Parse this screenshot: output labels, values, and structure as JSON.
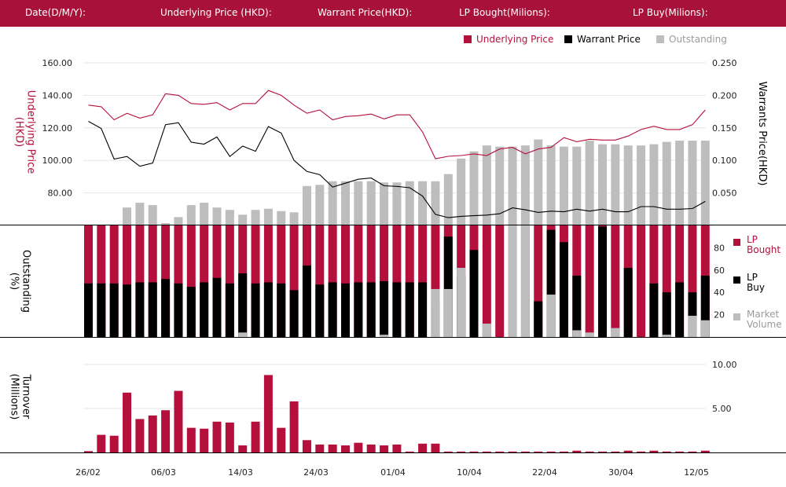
{
  "header": {
    "date_label": "Date(D/M/Y):",
    "underlying_label": "Underlying Price (HKD):",
    "warrant_label": "Warrant  Price(HKD):",
    "lp_bought_label": "LP Bought(Milions):",
    "lp_buy_label": "LP Buy(Milions):"
  },
  "colors": {
    "header_bg": "#a8123a",
    "underlying": "#b5103c",
    "warrant": "#000000",
    "outstanding": "#bdbdbd",
    "lp_bought": "#b5103c",
    "lp_buy": "#000000",
    "market_volume": "#bdbdbd",
    "turnover": "#b5103c",
    "grid": "#e6e6e6"
  },
  "legend": {
    "underlying": "Underlying Price",
    "warrant": "Warrant  Price",
    "outstanding": "Outstanding"
  },
  "panel2_legend": {
    "lp_bought": [
      "LP",
      "Bought"
    ],
    "lp_buy": [
      "LP",
      "Buy"
    ],
    "market_volume": [
      "Market",
      "Volume"
    ]
  },
  "axes": {
    "price_left_title": [
      "Underlying Price",
      "(HKD)"
    ],
    "price_right_title": "Warrants  Price(HKD)",
    "outstanding_title": [
      "Outstanding",
      "(%)"
    ],
    "turnover_title": [
      "Turnover",
      "(Millions)"
    ],
    "price_left_ticks": [
      "160.00",
      "140.00",
      "120.00",
      "100.00",
      "80.00"
    ],
    "price_right_ticks": [
      "0.250",
      "0.200",
      "0.150",
      "0.100",
      "0.050"
    ],
    "outstanding_ticks": [
      "80",
      "60",
      "40",
      "20"
    ],
    "turnover_ticks": [
      "10.00",
      "5.00"
    ],
    "x_ticks": [
      "26/02",
      "06/03",
      "14/03",
      "24/03",
      "01/04",
      "10/04",
      "22/04",
      "30/04",
      "12/05"
    ]
  },
  "chart_data": [
    {
      "type": "line",
      "x_tick_labels": [
        "26/02",
        "06/03",
        "14/03",
        "24/03",
        "01/04",
        "10/04",
        "22/04",
        "30/04",
        "12/05"
      ],
      "ylim_left": [
        60,
        160
      ],
      "ylim_right": [
        0,
        0.25
      ],
      "grid": true,
      "legend_position": "top-right",
      "series": [
        {
          "name": "Underlying Price",
          "axis": "left",
          "values": [
            134,
            133,
            125,
            129,
            126,
            128,
            141,
            140,
            135,
            134.5,
            135.5,
            131,
            135,
            135,
            143,
            140,
            134,
            129,
            131,
            125,
            127,
            127.5,
            128.5,
            125.5,
            128,
            128,
            117.5,
            101,
            102.5,
            103,
            104,
            103,
            107,
            108,
            104,
            107,
            108,
            114,
            111.5,
            113,
            112.5,
            112.5,
            115,
            119,
            121,
            119,
            119,
            122,
            131
          ]
        },
        {
          "name": "Warrant  Price",
          "axis": "right",
          "values": [
            0.16,
            0.149,
            0.102,
            0.106,
            0.091,
            0.096,
            0.155,
            0.158,
            0.128,
            0.125,
            0.136,
            0.106,
            0.122,
            0.114,
            0.152,
            0.142,
            0.1,
            0.083,
            0.078,
            0.059,
            0.065,
            0.071,
            0.073,
            0.061,
            0.06,
            0.058,
            0.045,
            0.017,
            0.012,
            0.014,
            0.015,
            0.016,
            0.018,
            0.027,
            0.024,
            0.02,
            0.022,
            0.021,
            0.025,
            0.022,
            0.025,
            0.021,
            0.021,
            0.029,
            0.029,
            0.025,
            0.025,
            0.026,
            0.037
          ]
        },
        {
          "name": "Outstanding",
          "axis": "outstanding_pct",
          "type": "bar",
          "values": [
            0,
            0,
            0,
            15,
            19,
            17,
            2,
            7,
            17,
            19,
            15,
            13,
            9,
            13,
            14,
            12,
            11,
            33,
            34,
            37,
            37,
            37,
            37,
            36,
            36,
            37,
            37,
            37,
            43,
            56,
            62,
            67,
            66,
            66,
            67,
            72,
            67,
            66,
            66,
            71,
            68,
            68,
            67,
            67,
            68,
            70,
            71,
            71,
            71
          ]
        }
      ]
    },
    {
      "type": "bar",
      "ylim": [
        0,
        100
      ],
      "legend_position": "right",
      "series": [
        {
          "name": "LP Bought",
          "values": [
            100,
            100,
            100,
            100,
            100,
            100,
            100,
            100,
            100,
            100,
            100,
            100,
            100,
            100,
            100,
            100,
            100,
            100,
            100,
            100,
            100,
            100,
            100,
            100,
            100,
            100,
            100,
            100,
            100,
            100,
            100,
            100,
            100,
            100,
            100,
            100,
            100,
            100,
            100,
            100,
            100,
            100,
            100,
            100,
            100,
            100,
            100,
            100,
            100
          ]
        },
        {
          "name": "LP Buy",
          "values": [
            48,
            48,
            48,
            47,
            49,
            49,
            52,
            48,
            45,
            49,
            53,
            48,
            57,
            48,
            49,
            48,
            42,
            64,
            47,
            49,
            48,
            49,
            49,
            50,
            49,
            49,
            49,
            30,
            90,
            55,
            78,
            0,
            0,
            0,
            0,
            32,
            96,
            85,
            55,
            0,
            99,
            0,
            62,
            0,
            48,
            40,
            49,
            40,
            55
          ]
        },
        {
          "name": "Market Volume",
          "values": [
            0,
            0,
            0,
            0,
            0,
            0,
            0,
            0,
            0,
            0,
            0,
            0,
            4,
            0,
            0,
            0,
            0,
            0,
            0,
            0,
            0,
            0,
            0,
            2,
            0,
            0,
            0,
            43,
            43,
            62,
            0,
            12,
            0,
            100,
            100,
            0,
            38,
            0,
            6,
            4,
            0,
            8,
            0,
            0,
            0,
            2,
            0,
            19,
            15
          ]
        }
      ]
    },
    {
      "type": "bar",
      "ylabel": "Turnover (Millions)",
      "ylim": [
        0,
        10
      ],
      "series": [
        {
          "name": "Turnover",
          "values": [
            0.15,
            2.0,
            1.9,
            6.8,
            3.8,
            4.2,
            4.8,
            7.0,
            2.8,
            2.7,
            3.5,
            3.4,
            0.8,
            3.5,
            8.8,
            2.8,
            5.8,
            1.4,
            0.9,
            0.9,
            0.8,
            1.1,
            0.9,
            0.8,
            0.9,
            0.1,
            1.0,
            1.0,
            0.1,
            0.1,
            0.1,
            0.1,
            0.1,
            0.1,
            0.1,
            0.1,
            0.1,
            0.1,
            0.2,
            0.1,
            0.1,
            0.1,
            0.2,
            0.1,
            0.2,
            0.1,
            0.1,
            0.1,
            0.2
          ]
        }
      ]
    }
  ]
}
